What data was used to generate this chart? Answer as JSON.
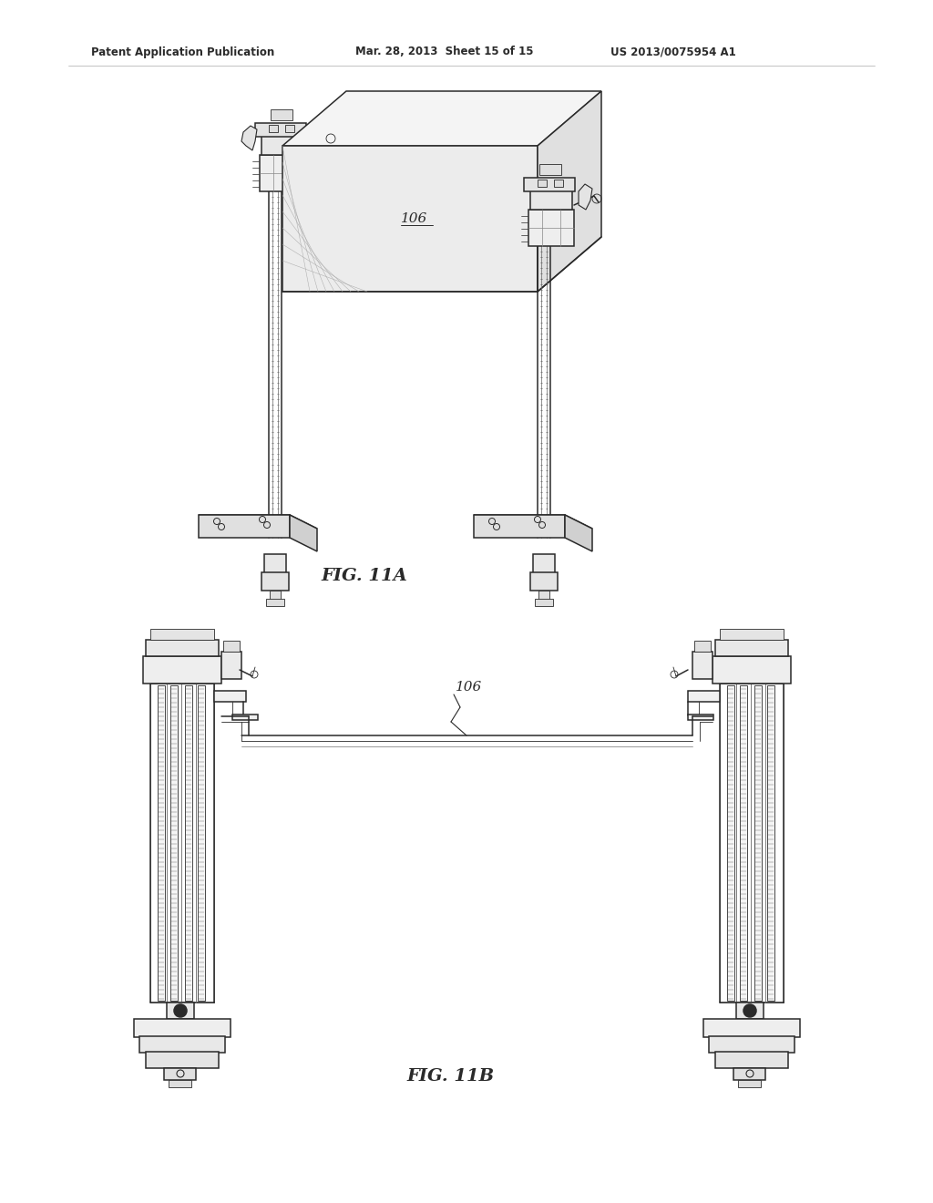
{
  "bg_color": "#ffffff",
  "line_color": "#2a2a2a",
  "header_left": "Patent Application Publication",
  "header_mid": "Mar. 28, 2013  Sheet 15 of 15",
  "header_right": "US 2013/0075954 A1",
  "fig_label_a": "FIG. 11A",
  "fig_label_b": "FIG. 11B",
  "label_106_a": "106",
  "label_106_b": "106",
  "header_fontsize": 8.5,
  "fig_label_fontsize": 14,
  "annotation_fontsize": 11
}
